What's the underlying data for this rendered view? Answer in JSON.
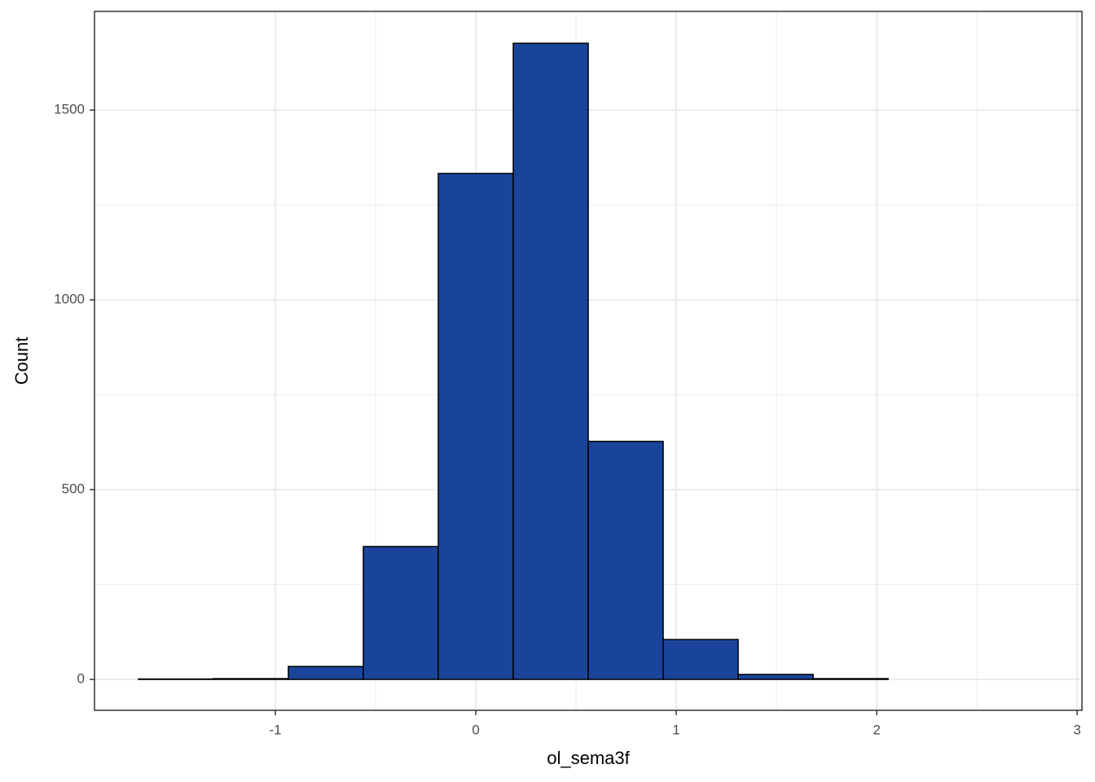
{
  "chart_data": {
    "type": "histogram",
    "x_label": "ol_sema3f",
    "y_label": "Count",
    "bins": [
      -1.683,
      -1.309,
      -0.935,
      -0.561,
      -0.187,
      0.187,
      0.561,
      0.935,
      1.309,
      1.683,
      2.057,
      2.431,
      2.805
    ],
    "values": [
      1,
      2,
      34,
      350,
      1333,
      1676,
      627,
      105,
      13,
      2,
      0,
      0
    ],
    "color": "#1a449a",
    "xlim": [
      -1.902,
      3.024
    ],
    "ylim": [
      -81.5,
      1760
    ],
    "xticks": [
      -1,
      0,
      1,
      2,
      3
    ],
    "yticks": [
      0,
      500,
      1000,
      1500
    ],
    "grid": true
  }
}
